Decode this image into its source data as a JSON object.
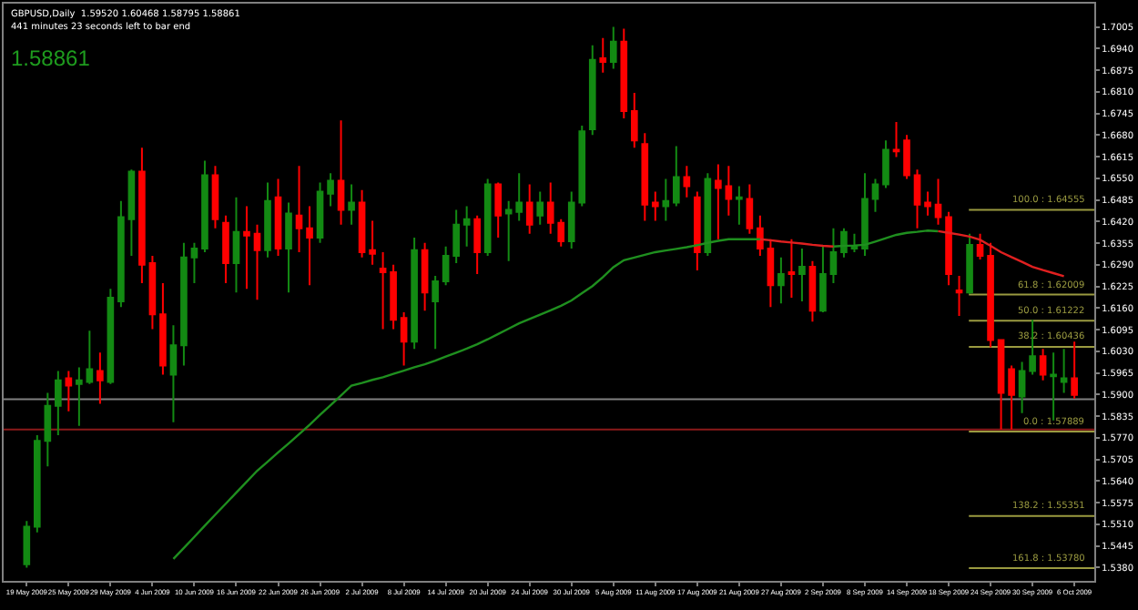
{
  "chart_data": {
    "type": "candlestick",
    "title": "GBPUSD,Daily  1.59520 1.60468 1.58795 1.58861",
    "subtitle": "441 minutes 23 seconds left to bar end",
    "annotations": [
      "1.58861"
    ],
    "categories": [
      "19 May 2009",
      null,
      null,
      null,
      "25 May 2009",
      null,
      null,
      null,
      "29 May 2009",
      null,
      null,
      null,
      "4 Jun 2009",
      null,
      null,
      null,
      "10 Jun 2009",
      null,
      null,
      null,
      "16 Jun 2009",
      null,
      null,
      null,
      "22 Jun 2009",
      null,
      null,
      null,
      "26 Jun 2009",
      null,
      null,
      null,
      "2 Jul 2009",
      null,
      null,
      null,
      "8 Jul 2009",
      null,
      null,
      null,
      "14 Jul 2009",
      null,
      null,
      null,
      "20 Jul 2009",
      null,
      null,
      null,
      "24 Jul 2009",
      null,
      null,
      null,
      "30 Jul 2009",
      null,
      null,
      null,
      "5 Aug 2009",
      null,
      null,
      null,
      "11 Aug 2009",
      null,
      null,
      null,
      "17 Aug 2009",
      null,
      null,
      null,
      "21 Aug 2009",
      null,
      null,
      null,
      "27 Aug 2009",
      null,
      null,
      null,
      "2 Sep 2009",
      null,
      null,
      null,
      "8 Sep 2009",
      null,
      null,
      null,
      "14 Sep 2009",
      null,
      null,
      null,
      "18 Sep 2009",
      null,
      null,
      null,
      "24 Sep 2009",
      null,
      null,
      null,
      "30 Sep 2009",
      null,
      null,
      null,
      "6 Oct 2009"
    ],
    "ohlc": [
      [
        1.539,
        1.552,
        1.538,
        1.5503
      ],
      [
        1.5503,
        1.5778,
        1.5486,
        1.5761
      ],
      [
        1.5761,
        1.5905,
        1.5684,
        1.5866
      ],
      [
        1.5866,
        1.5971,
        1.5778,
        1.5943
      ],
      [
        1.5949,
        1.5971,
        1.585,
        1.5927
      ],
      [
        1.5932,
        1.5982,
        1.5806,
        1.5943
      ],
      [
        1.5938,
        1.6092,
        1.5932,
        1.5976
      ],
      [
        1.5971,
        1.6026,
        1.5872,
        1.5943
      ],
      [
        1.5938,
        1.6218,
        1.5932,
        1.6191
      ],
      [
        1.618,
        1.6482,
        1.6163,
        1.6433
      ],
      [
        1.6427,
        1.6576,
        1.6317,
        1.657
      ],
      [
        1.657,
        1.6642,
        1.6235,
        1.629
      ],
      [
        1.6295,
        1.6317,
        1.6097,
        1.6141
      ],
      [
        1.6141,
        1.6235,
        1.596,
        1.5987
      ],
      [
        1.596,
        1.6108,
        1.5817,
        1.6048
      ],
      [
        1.6048,
        1.6356,
        1.5987,
        1.6312
      ],
      [
        1.6312,
        1.6356,
        1.6235,
        1.6339
      ],
      [
        1.6339,
        1.6603,
        1.6328,
        1.6559
      ],
      [
        1.6559,
        1.6587,
        1.64,
        1.6427
      ],
      [
        1.6416,
        1.6438,
        1.6235,
        1.6295
      ],
      [
        1.6295,
        1.6493,
        1.6207,
        1.6389
      ],
      [
        1.6389,
        1.6466,
        1.6218,
        1.6378
      ],
      [
        1.6383,
        1.6411,
        1.6185,
        1.6334
      ],
      [
        1.6334,
        1.6537,
        1.6312,
        1.6482
      ],
      [
        1.6493,
        1.6548,
        1.6317,
        1.6339
      ],
      [
        1.6339,
        1.6477,
        1.6207,
        1.6444
      ],
      [
        1.6438,
        1.6587,
        1.6328,
        1.64
      ],
      [
        1.64,
        1.6466,
        1.6229,
        1.6372
      ],
      [
        1.6372,
        1.6537,
        1.6356,
        1.651
      ],
      [
        1.6504,
        1.6565,
        1.6466,
        1.6543
      ],
      [
        1.6543,
        1.6724,
        1.6411,
        1.6455
      ],
      [
        1.6455,
        1.6532,
        1.6411,
        1.6477
      ],
      [
        1.6477,
        1.6515,
        1.6312,
        1.6328
      ],
      [
        1.6334,
        1.6422,
        1.629,
        1.6323
      ],
      [
        1.6279,
        1.6328,
        1.6097,
        1.6268
      ],
      [
        1.6268,
        1.629,
        1.6097,
        1.6125
      ],
      [
        1.613,
        1.6147,
        1.5987,
        1.6059
      ],
      [
        1.6059,
        1.6372,
        1.6037,
        1.6334
      ],
      [
        1.6334,
        1.6356,
        1.6152,
        1.6207
      ],
      [
        1.618,
        1.6257,
        1.6037,
        1.624
      ],
      [
        1.624,
        1.6345,
        1.6229,
        1.6317
      ],
      [
        1.6317,
        1.6455,
        1.6295,
        1.6411
      ],
      [
        1.6411,
        1.6466,
        1.6345,
        1.6427
      ],
      [
        1.6427,
        1.6438,
        1.6262,
        1.6328
      ],
      [
        1.6328,
        1.6548,
        1.6317,
        1.6532
      ],
      [
        1.6532,
        1.6537,
        1.6372,
        1.6438
      ],
      [
        1.6444,
        1.6482,
        1.6301,
        1.6455
      ],
      [
        1.6449,
        1.6565,
        1.6422,
        1.6477
      ],
      [
        1.6477,
        1.6532,
        1.6383,
        1.6411
      ],
      [
        1.6438,
        1.651,
        1.6411,
        1.6477
      ],
      [
        1.6477,
        1.6537,
        1.6383,
        1.6416
      ],
      [
        1.6416,
        1.6427,
        1.6345,
        1.6361
      ],
      [
        1.6361,
        1.651,
        1.6339,
        1.6477
      ],
      [
        1.6477,
        1.6708,
        1.6466,
        1.6691
      ],
      [
        1.6697,
        1.695,
        1.668,
        1.6906
      ],
      [
        1.6911,
        1.6972,
        1.6868,
        1.69
      ],
      [
        1.69,
        1.7005,
        1.6879,
        1.6961
      ],
      [
        1.6961,
        1.7,
        1.673,
        1.6752
      ],
      [
        1.6752,
        1.6807,
        1.6642,
        1.6664
      ],
      [
        1.6653,
        1.6686,
        1.6422,
        1.6471
      ],
      [
        1.6477,
        1.651,
        1.6422,
        1.6466
      ],
      [
        1.6466,
        1.6548,
        1.6422,
        1.6482
      ],
      [
        1.6477,
        1.6647,
        1.6466,
        1.6554
      ],
      [
        1.6554,
        1.6587,
        1.6493,
        1.6526
      ],
      [
        1.6493,
        1.651,
        1.6273,
        1.6328
      ],
      [
        1.6328,
        1.6565,
        1.6317,
        1.6548
      ],
      [
        1.6543,
        1.6592,
        1.6367,
        1.6521
      ],
      [
        1.6526,
        1.6587,
        1.6438,
        1.6488
      ],
      [
        1.6488,
        1.6526,
        1.6411,
        1.6493
      ],
      [
        1.6488,
        1.6532,
        1.6383,
        1.64
      ],
      [
        1.64,
        1.6438,
        1.6317,
        1.6339
      ],
      [
        1.6339,
        1.6367,
        1.6163,
        1.6229
      ],
      [
        1.6229,
        1.6312,
        1.6174,
        1.6262
      ],
      [
        1.6268,
        1.6367,
        1.6191,
        1.6262
      ],
      [
        1.6262,
        1.6339,
        1.618,
        1.6284
      ],
      [
        1.6284,
        1.6301,
        1.6119,
        1.6152
      ],
      [
        1.6152,
        1.6345,
        1.6147,
        1.6262
      ],
      [
        1.6262,
        1.64,
        1.6235,
        1.6328
      ],
      [
        1.6328,
        1.64,
        1.6312,
        1.6389
      ],
      [
        1.6339,
        1.6383,
        1.6328,
        1.6345
      ],
      [
        1.6339,
        1.6565,
        1.6317,
        1.6488
      ],
      [
        1.6488,
        1.6548,
        1.6449,
        1.6532
      ],
      [
        1.6532,
        1.6664,
        1.6521,
        1.6636
      ],
      [
        1.6636,
        1.6719,
        1.6614,
        1.6631
      ],
      [
        1.6664,
        1.668,
        1.6548,
        1.6559
      ],
      [
        1.6559,
        1.6576,
        1.64,
        1.6471
      ],
      [
        1.6477,
        1.651,
        1.6438,
        1.6466
      ],
      [
        1.6471,
        1.6548,
        1.6411,
        1.6433
      ],
      [
        1.6433,
        1.6449,
        1.6229,
        1.6262
      ],
      [
        1.6213,
        1.6257,
        1.6136,
        1.6207
      ],
      [
        1.6207,
        1.6383,
        1.6202,
        1.635
      ],
      [
        1.635,
        1.6383,
        1.6306,
        1.6317
      ],
      [
        1.6317,
        1.6356,
        1.6042,
        1.6064
      ],
      [
        1.6064,
        1.6064,
        1.5795,
        1.5905
      ],
      [
        1.5976,
        1.5987,
        1.5795,
        1.5899
      ],
      [
        1.5894,
        1.5998,
        1.5844,
        1.5971
      ],
      [
        1.5971,
        1.6125,
        1.596,
        1.6015
      ],
      [
        1.6015,
        1.6037,
        1.5943,
        1.596
      ],
      [
        1.5955,
        1.6026,
        1.5822,
        1.596
      ],
      [
        1.5938,
        1.6037,
        1.5905,
        1.5949
      ],
      [
        1.5949,
        1.6059,
        1.5888,
        1.5899
      ]
    ],
    "colors": [
      "#138a13",
      "#138a13",
      "#138a13",
      "#138a13",
      "#ff0000",
      "#138a13",
      "#138a13",
      "#ff0000",
      "#138a13",
      "#138a13",
      "#138a13",
      "#ff0000",
      "#ff0000",
      "#ff0000",
      "#138a13",
      "#138a13",
      "#138a13",
      "#138a13",
      "#ff0000",
      "#ff0000",
      "#138a13",
      "#ff0000",
      "#ff0000",
      "#138a13",
      "#ff0000",
      "#138a13",
      "#ff0000",
      "#ff0000",
      "#138a13",
      "#138a13",
      "#ff0000",
      "#138a13",
      "#ff0000",
      "#ff0000",
      "#ff0000",
      "#ff0000",
      "#ff0000",
      "#138a13",
      "#ff0000",
      "#138a13",
      "#138a13",
      "#138a13",
      "#138a13",
      "#ff0000",
      "#138a13",
      "#ff0000",
      "#138a13",
      "#138a13",
      "#ff0000",
      "#138a13",
      "#ff0000",
      "#ff0000",
      "#138a13",
      "#138a13",
      "#138a13",
      "#ff0000",
      "#138a13",
      "#ff0000",
      "#ff0000",
      "#ff0000",
      "#ff0000",
      "#138a13",
      "#138a13",
      "#ff0000",
      "#ff0000",
      "#138a13",
      "#ff0000",
      "#ff0000",
      "#138a13",
      "#ff0000",
      "#ff0000",
      "#ff0000",
      "#138a13",
      "#ff0000",
      "#138a13",
      "#ff0000",
      "#138a13",
      "#138a13",
      "#138a13",
      "#138a13",
      "#138a13",
      "#138a13",
      "#138a13",
      "#ff0000",
      "#ff0000",
      "#ff0000",
      "#ff0000",
      "#ff0000",
      "#ff0000",
      "#ff0000",
      "#138a13",
      "#ff0000",
      "#ff0000",
      "#ff0000",
      "#ff0000",
      "#138a13",
      "#138a13",
      "#ff0000",
      "#138a13",
      "#138a13",
      "#ff0000"
    ],
    "series": [
      {
        "type": "line",
        "color": "#1f8f1f",
        "values": [
          null,
          null,
          null,
          null,
          null,
          null,
          null,
          null,
          null,
          null,
          null,
          null,
          null,
          null,
          1.5406,
          1.5439,
          1.5472,
          1.5506,
          1.5539,
          1.5572,
          1.5605,
          1.5638,
          1.5671,
          1.5698,
          1.5726,
          1.5753,
          1.5781,
          1.5809,
          1.5839,
          1.5868,
          1.5897,
          1.5927,
          1.5935,
          1.5944,
          1.5952,
          1.5962,
          1.5972,
          1.5982,
          1.5991,
          1.6002,
          1.6014,
          1.6026,
          1.6038,
          1.6051,
          1.6066,
          1.6082,
          1.6098,
          1.6114,
          1.6127,
          1.614,
          1.6153,
          1.6167,
          1.6183,
          1.6205,
          1.6226,
          1.6253,
          1.6283,
          1.6304,
          1.6312,
          1.632,
          1.6328,
          1.6333,
          1.6338,
          1.6343,
          1.6349,
          1.6356,
          1.6362,
          1.6367,
          1.6367,
          1.6367,
          1.6367,
          null,
          null,
          null,
          null,
          null,
          null,
          1.6345,
          1.6347,
          1.6348,
          1.635,
          1.636,
          1.637,
          1.638,
          1.6386,
          1.6389,
          1.6393,
          1.6391,
          null,
          null,
          null,
          null,
          null,
          null,
          null,
          null,
          null,
          null,
          null,
          null,
          null
        ]
      },
      {
        "type": "line",
        "color": "#e02020",
        "values": [
          null,
          null,
          null,
          null,
          null,
          null,
          null,
          null,
          null,
          null,
          null,
          null,
          null,
          null,
          null,
          null,
          null,
          null,
          null,
          null,
          null,
          null,
          null,
          null,
          null,
          null,
          null,
          null,
          null,
          null,
          null,
          null,
          null,
          null,
          null,
          null,
          null,
          null,
          null,
          null,
          null,
          null,
          null,
          null,
          null,
          null,
          null,
          null,
          null,
          null,
          null,
          null,
          null,
          null,
          null,
          null,
          null,
          null,
          null,
          null,
          null,
          null,
          null,
          null,
          null,
          null,
          null,
          null,
          null,
          null,
          1.6367,
          1.6364,
          1.636,
          1.6357,
          1.6354,
          1.635,
          1.6347,
          1.6345,
          null,
          null,
          null,
          null,
          null,
          null,
          null,
          null,
          null,
          1.6391,
          1.6386,
          1.6381,
          1.6375,
          1.6365,
          1.6347,
          1.6328,
          1.6313,
          1.6299,
          1.6284,
          1.6274,
          1.6265,
          1.6256,
          null
        ]
      }
    ],
    "ylim": [
      1.534,
      1.7075
    ],
    "yticks": [
      {
        "value": 1.538,
        "label": "1.5380"
      },
      {
        "value": 1.5445,
        "label": "1.5445"
      },
      {
        "value": 1.551,
        "label": "1.5510"
      },
      {
        "value": 1.5575,
        "label": "1.5575"
      },
      {
        "value": 1.564,
        "label": "1.5640"
      },
      {
        "value": 1.5705,
        "label": "1.5705"
      },
      {
        "value": 1.577,
        "label": "1.5770"
      },
      {
        "value": 1.5835,
        "label": "1.5835"
      },
      {
        "value": 1.59,
        "label": "1.5900"
      },
      {
        "value": 1.5965,
        "label": "1.5965"
      },
      {
        "value": 1.603,
        "label": "1.6030"
      },
      {
        "value": 1.6095,
        "label": "1.6095"
      },
      {
        "value": 1.616,
        "label": "1.6160"
      },
      {
        "value": 1.6225,
        "label": "1.6225"
      },
      {
        "value": 1.629,
        "label": "1.6290"
      },
      {
        "value": 1.6355,
        "label": "1.6355"
      },
      {
        "value": 1.642,
        "label": "1.6420"
      },
      {
        "value": 1.6485,
        "label": "1.6485"
      },
      {
        "value": 1.655,
        "label": "1.6550"
      },
      {
        "value": 1.6615,
        "label": "1.6615"
      },
      {
        "value": 1.668,
        "label": "1.6680"
      },
      {
        "value": 1.6745,
        "label": "1.6745"
      },
      {
        "value": 1.681,
        "label": "1.6810"
      },
      {
        "value": 1.6875,
        "label": "1.6875"
      },
      {
        "value": 1.694,
        "label": "1.6940"
      },
      {
        "value": 1.7005,
        "label": "1.7005"
      }
    ],
    "ref_lines": [
      {
        "axis": "y",
        "value": 1.5886,
        "color": "#808080"
      },
      {
        "axis": "y",
        "value": 1.5795,
        "color": "#8b1a1a"
      },
      {
        "axis": "y",
        "value": 1.64555,
        "label": "100.0 : 1.64555",
        "color": "#9a9a40"
      },
      {
        "axis": "y",
        "value": 1.62009,
        "label": "61.8 : 1.62009",
        "color": "#9a9a40"
      },
      {
        "axis": "y",
        "value": 1.61222,
        "label": "50.0 : 1.61222",
        "color": "#9a9a40"
      },
      {
        "axis": "y",
        "value": 1.60436,
        "label": "38.2 : 1.60436",
        "color": "#9a9a40"
      },
      {
        "axis": "y",
        "value": 1.57889,
        "label": "0.0 : 1.57889",
        "color": "#9a9a40"
      },
      {
        "axis": "y",
        "value": 1.55351,
        "label": "138.2 : 1.55351",
        "color": "#9a9a40"
      },
      {
        "axis": "y",
        "value": 1.5378,
        "label": "161.8 : 1.53780",
        "color": "#9a9a40"
      }
    ],
    "grid": false
  }
}
